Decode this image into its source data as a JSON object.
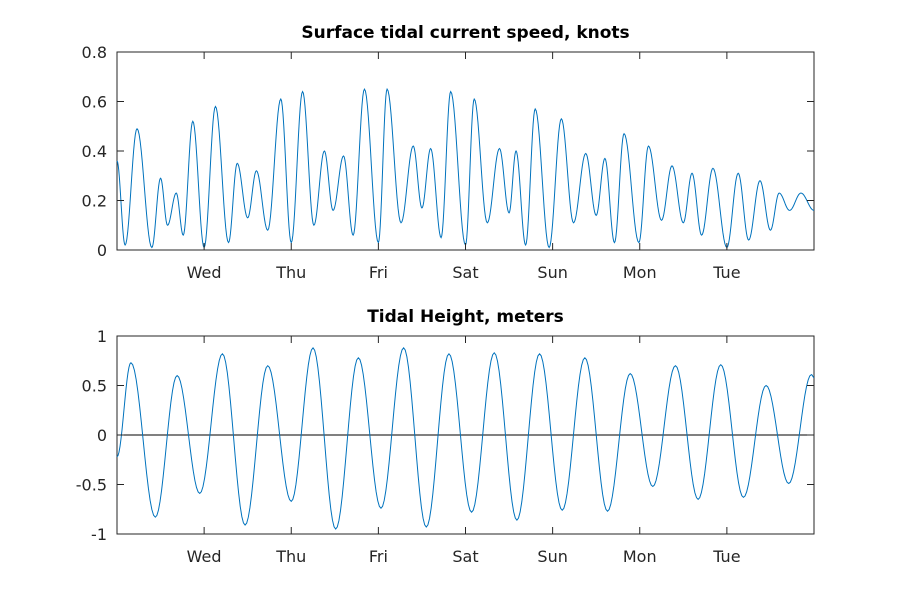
{
  "chart_data": [
    {
      "type": "line",
      "title": "Surface tidal current speed, knots",
      "xlim": [
        0,
        8
      ],
      "ylim": [
        0,
        0.8
      ],
      "xticks": [
        {
          "value": 1,
          "label": "Wed"
        },
        {
          "value": 2,
          "label": "Thu"
        },
        {
          "value": 3,
          "label": "Fri"
        },
        {
          "value": 4,
          "label": "Sat"
        },
        {
          "value": 5,
          "label": "Sun"
        },
        {
          "value": 6,
          "label": "Mon"
        },
        {
          "value": 7,
          "label": "Tue"
        }
      ],
      "yticks": [
        {
          "value": 0,
          "label": "0"
        },
        {
          "value": 0.2,
          "label": "0.2"
        },
        {
          "value": 0.4,
          "label": "0.4"
        },
        {
          "value": 0.6,
          "label": "0.6"
        },
        {
          "value": 0.8,
          "label": "0.8"
        }
      ],
      "color": "#0072BD",
      "series": [
        {
          "x": [
            0,
            0.093,
            0.23,
            0.4,
            0.5,
            0.58,
            0.68,
            0.76,
            0.87,
            1.0,
            1.13,
            1.28,
            1.38,
            1.5,
            1.6,
            1.73,
            1.88,
            2.0,
            2.13,
            2.26,
            2.38,
            2.48,
            2.6,
            2.71,
            2.84,
            3.0,
            3.1,
            3.26,
            3.4,
            3.5,
            3.6,
            3.72,
            3.83,
            4.0,
            4.1,
            4.25,
            4.39,
            4.5,
            4.58,
            4.69,
            4.8,
            4.96,
            5.1,
            5.24,
            5.38,
            5.5,
            5.6,
            5.71,
            5.82,
            5.99,
            6.1,
            6.25,
            6.37,
            6.5,
            6.6,
            6.71,
            6.84,
            7.0,
            7.13,
            7.25,
            7.38,
            7.5,
            7.6,
            7.72,
            7.85,
            8.0
          ],
          "y": [
            0.36,
            0.02,
            0.49,
            0.01,
            0.29,
            0.1,
            0.23,
            0.06,
            0.52,
            0.01,
            0.58,
            0.03,
            0.35,
            0.13,
            0.32,
            0.08,
            0.61,
            0.03,
            0.64,
            0.1,
            0.4,
            0.16,
            0.38,
            0.06,
            0.65,
            0.03,
            0.65,
            0.11,
            0.42,
            0.17,
            0.41,
            0.05,
            0.64,
            0.02,
            0.61,
            0.11,
            0.41,
            0.15,
            0.4,
            0.02,
            0.57,
            0.01,
            0.53,
            0.11,
            0.39,
            0.14,
            0.37,
            0.03,
            0.47,
            0.03,
            0.42,
            0.12,
            0.34,
            0.11,
            0.31,
            0.06,
            0.33,
            0.01,
            0.31,
            0.04,
            0.28,
            0.08,
            0.23,
            0.16,
            0.23,
            0.16
          ]
        }
      ]
    },
    {
      "type": "line",
      "title": "Tidal Height, meters",
      "xlim": [
        0,
        8
      ],
      "ylim": [
        -1,
        1
      ],
      "xticks": [
        {
          "value": 1,
          "label": "Wed"
        },
        {
          "value": 2,
          "label": "Thu"
        },
        {
          "value": 3,
          "label": "Fri"
        },
        {
          "value": 4,
          "label": "Sat"
        },
        {
          "value": 5,
          "label": "Sun"
        },
        {
          "value": 6,
          "label": "Mon"
        },
        {
          "value": 7,
          "label": "Tue"
        }
      ],
      "yticks": [
        {
          "value": -1,
          "label": "-1"
        },
        {
          "value": -0.5,
          "label": "-0.5"
        },
        {
          "value": 0,
          "label": "0"
        },
        {
          "value": 0.5,
          "label": "0.5"
        },
        {
          "value": 1,
          "label": "1"
        }
      ],
      "reference_line_y": 0,
      "color": "#0072BD",
      "series": [
        {
          "x": [
            0,
            0.16,
            0.44,
            0.69,
            0.95,
            1.21,
            1.47,
            1.73,
            2.0,
            2.25,
            2.51,
            2.77,
            3.03,
            3.29,
            3.55,
            3.81,
            4.07,
            4.33,
            4.59,
            4.85,
            5.11,
            5.37,
            5.63,
            5.89,
            6.15,
            6.41,
            6.67,
            6.93,
            7.19,
            7.45,
            7.71,
            7.97,
            8.0
          ],
          "y": [
            -0.22,
            0.73,
            -0.83,
            0.6,
            -0.59,
            0.82,
            -0.91,
            0.7,
            -0.67,
            0.88,
            -0.95,
            0.78,
            -0.74,
            0.88,
            -0.93,
            0.82,
            -0.78,
            0.83,
            -0.86,
            0.82,
            -0.76,
            0.78,
            -0.77,
            0.62,
            -0.52,
            0.7,
            -0.65,
            0.71,
            -0.63,
            0.5,
            -0.49,
            0.61,
            0.58
          ]
        }
      ]
    }
  ]
}
